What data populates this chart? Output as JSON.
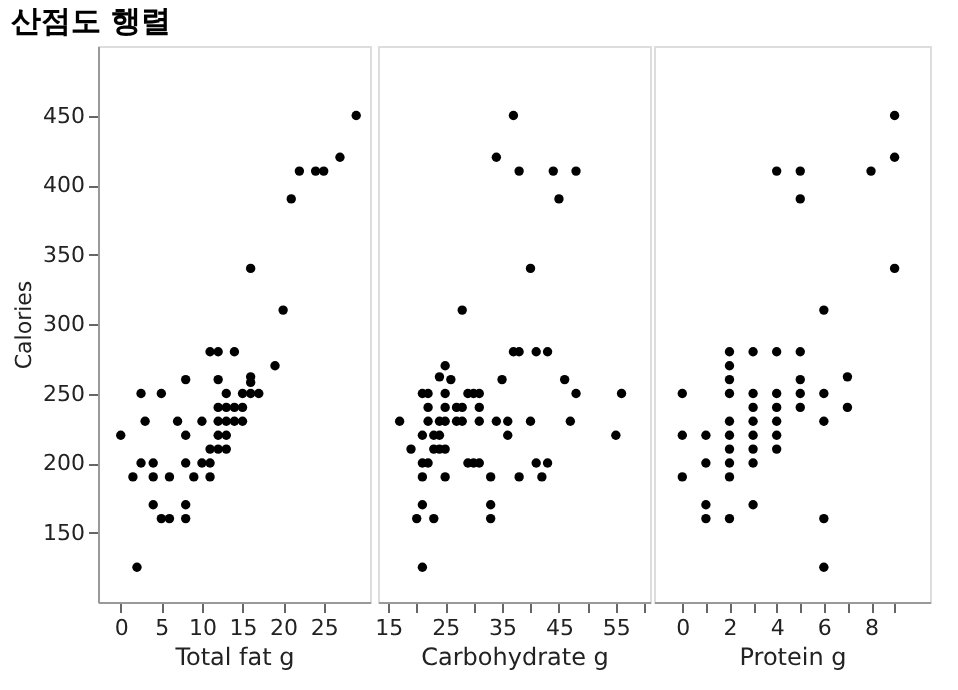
{
  "chart_data": [
    {
      "type": "scatter",
      "title": "산점도 행렬",
      "xlabel": "Total fat g",
      "ylabel": "Calories",
      "xlim": [
        -2.8,
        30.7
      ],
      "xticks": [
        0,
        5,
        10,
        15,
        20,
        25
      ],
      "ylim": [
        100,
        500
      ],
      "yticks": [
        150,
        200,
        250,
        300,
        350,
        400,
        450
      ],
      "marker": "circle",
      "grid": false,
      "series": [
        {
          "color": "#000000",
          "x": [
            29,
            27,
            22,
            24,
            25,
            21,
            16,
            20,
            11,
            12,
            14,
            19,
            16,
            16,
            12,
            8,
            2.5,
            5,
            13,
            15,
            16,
            17,
            12,
            13,
            14,
            15,
            3,
            7,
            10,
            12,
            13,
            14,
            15,
            0,
            8,
            12,
            13,
            11,
            12,
            13,
            2.5,
            4,
            8,
            10,
            11,
            1.5,
            4,
            6,
            9,
            11,
            4,
            8,
            5,
            6,
            8,
            2
          ],
          "values": [
            450,
            420,
            410,
            410,
            410,
            390,
            340,
            310,
            280,
            280,
            280,
            270,
            262,
            258,
            260,
            260,
            250,
            250,
            250,
            250,
            250,
            250,
            240,
            240,
            240,
            240,
            230,
            230,
            230,
            230,
            230,
            230,
            230,
            220,
            220,
            220,
            220,
            210,
            210,
            210,
            200,
            200,
            200,
            200,
            200,
            190,
            190,
            190,
            190,
            190,
            170,
            170,
            160,
            160,
            160,
            125
          ]
        }
      ]
    },
    {
      "type": "scatter",
      "xlabel": "Carbohydrate g",
      "xlim": [
        13.2,
        61
      ],
      "xticks": [
        15,
        {
          "value": 20,
          "label": null
        },
        25,
        {
          "value": 30,
          "label": null
        },
        35,
        {
          "value": 40,
          "label": null
        },
        45,
        {
          "value": 50,
          "label": null
        },
        55,
        {
          "value": 60,
          "label": null
        }
      ],
      "ylim": [
        100,
        500
      ],
      "yticks": [
        150,
        200,
        250,
        300,
        350,
        400,
        450
      ],
      "tick_labels": "x",
      "marker": "circle",
      "grid": false,
      "series": [
        {
          "color": "#000000",
          "x": [
            37,
            34,
            38,
            44,
            48,
            45,
            40,
            28,
            37,
            38,
            41,
            43,
            25,
            24,
            26,
            35,
            46,
            21,
            22,
            25,
            29,
            30,
            31,
            48,
            56,
            22,
            25,
            27,
            28,
            31,
            17,
            22,
            24,
            25,
            27,
            28,
            31,
            34,
            36,
            40,
            47,
            21,
            23,
            24,
            36,
            55,
            19,
            23,
            24,
            25,
            21,
            22,
            29,
            30,
            31,
            41,
            43,
            21,
            25,
            33,
            38,
            42,
            21,
            33,
            20,
            23,
            33,
            21
          ],
          "values": [
            450,
            420,
            410,
            410,
            410,
            390,
            340,
            310,
            280,
            280,
            280,
            280,
            270,
            262,
            260,
            260,
            260,
            250,
            250,
            250,
            250,
            250,
            250,
            250,
            250,
            240,
            240,
            240,
            240,
            240,
            230,
            230,
            230,
            230,
            230,
            230,
            230,
            230,
            230,
            230,
            230,
            220,
            220,
            220,
            220,
            220,
            210,
            210,
            210,
            210,
            200,
            200,
            200,
            200,
            200,
            200,
            200,
            190,
            190,
            190,
            190,
            190,
            170,
            170,
            160,
            160,
            160,
            125
          ]
        }
      ]
    },
    {
      "type": "scatter",
      "xlabel": "Protein g",
      "xlim": [
        -1.2,
        10.5
      ],
      "xticks": [
        0,
        {
          "value": 1,
          "label": null
        },
        2,
        {
          "value": 3,
          "label": null
        },
        4,
        {
          "value": 5,
          "label": null
        },
        6,
        {
          "value": 7,
          "label": null
        },
        8,
        {
          "value": 9,
          "label": null
        }
      ],
      "ylim": [
        100,
        500
      ],
      "yticks": [
        150,
        200,
        250,
        300,
        350,
        400,
        450
      ],
      "tick_labels": "x",
      "marker": "circle",
      "grid": false,
      "series": [
        {
          "color": "#000000",
          "x": [
            9,
            9,
            4,
            5,
            8,
            5,
            9,
            6,
            2,
            3,
            4,
            5,
            2,
            7,
            2,
            5,
            0,
            2,
            3,
            4,
            5,
            6,
            3,
            4,
            5,
            7,
            2,
            3,
            4,
            6,
            0,
            1,
            2,
            3,
            4,
            2,
            3,
            4,
            1,
            2,
            3,
            0,
            2,
            1,
            3,
            1,
            2,
            6,
            6
          ],
          "values": [
            450,
            420,
            410,
            410,
            410,
            390,
            340,
            310,
            280,
            280,
            280,
            280,
            270,
            262,
            260,
            260,
            250,
            250,
            250,
            250,
            250,
            250,
            240,
            240,
            240,
            240,
            230,
            230,
            230,
            230,
            220,
            220,
            220,
            220,
            220,
            210,
            210,
            210,
            200,
            200,
            200,
            190,
            190,
            170,
            170,
            160,
            160,
            160,
            125
          ]
        }
      ]
    }
  ]
}
